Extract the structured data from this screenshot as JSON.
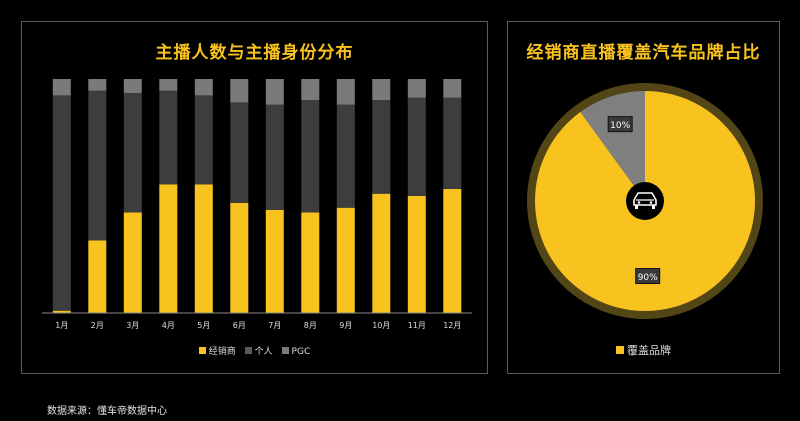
{
  "chart_data": [
    {
      "type": "bar",
      "stacked": true,
      "percent": true,
      "title": "主播人数与主播身份分布",
      "categories": [
        "1月",
        "2月",
        "3月",
        "4月",
        "5月",
        "6月",
        "7月",
        "8月",
        "9月",
        "10月",
        "11月",
        "12月"
      ],
      "series": [
        {
          "name": "经销商",
          "color": "#f9c31f",
          "values": [
            1,
            31,
            43,
            55,
            55,
            47,
            44,
            43,
            45,
            51,
            50,
            53
          ]
        },
        {
          "name": "个人",
          "color": "#3d3d3d",
          "values": [
            92,
            64,
            51,
            40,
            38,
            43,
            45,
            48,
            44,
            40,
            42,
            39
          ]
        },
        {
          "name": "PGC",
          "color": "#7a7a7a",
          "values": [
            7,
            5,
            6,
            5,
            7,
            10,
            11,
            9,
            11,
            9,
            8,
            8
          ]
        }
      ],
      "ylim": [
        0,
        100
      ],
      "legend": "bottom"
    },
    {
      "type": "pie",
      "title": "经销商直播覆盖汽车品牌占比",
      "slices": [
        {
          "name": "覆盖品牌",
          "value": 90,
          "label": "90%",
          "color": "#f9c31f"
        },
        {
          "name": "",
          "value": 10,
          "label": "10%",
          "color": "#7f7f7f"
        }
      ],
      "center_icon": "car-icon",
      "legend": "bottom"
    }
  ],
  "footer": {
    "source": "数据来源：懂车帝数据中心"
  }
}
